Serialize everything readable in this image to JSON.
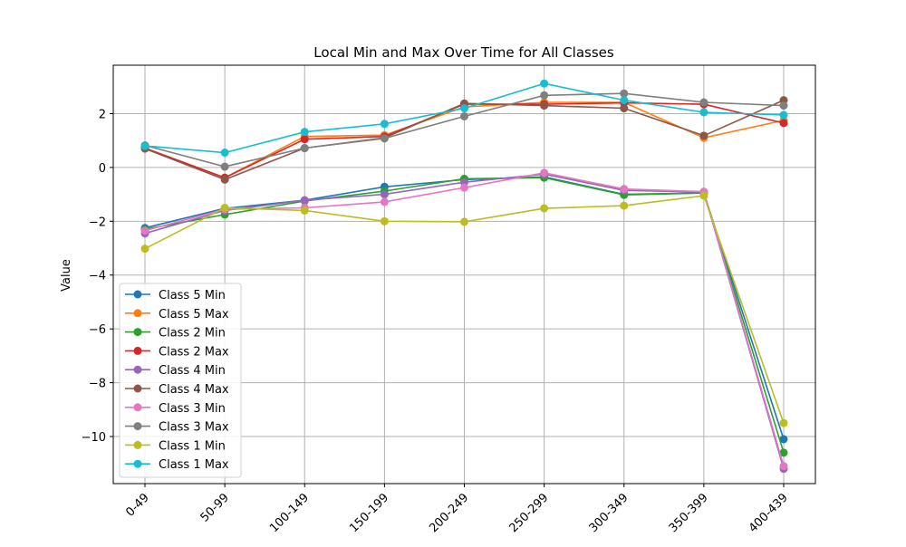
{
  "chart_data": {
    "type": "line",
    "title": "Local Min and Max Over Time for All Classes",
    "xlabel": "",
    "ylabel": "Value",
    "categories": [
      "0-49",
      "50-99",
      "100-149",
      "150-199",
      "200-249",
      "250-299",
      "300-349",
      "350-399",
      "400-439"
    ],
    "yticks": [
      2,
      0,
      -2,
      -4,
      -6,
      -8,
      -10
    ],
    "ytick_labels": [
      "2",
      "0",
      "−2",
      "−4",
      "−6",
      "−8",
      "−10"
    ],
    "ylim": [
      -11.75,
      3.8
    ],
    "grid": true,
    "legend_position": "lower-left",
    "series": [
      {
        "name": "Class 5 Min",
        "color": "#1f77b4",
        "values": [
          -2.25,
          -1.52,
          -1.22,
          -0.72,
          -0.45,
          -0.35,
          -1.0,
          -0.95,
          -10.1
        ]
      },
      {
        "name": "Class 5 Max",
        "color": "#ff7f0e",
        "values": [
          0.72,
          -0.38,
          1.15,
          1.2,
          2.25,
          2.42,
          2.42,
          1.1,
          1.75
        ]
      },
      {
        "name": "Class 2 Min",
        "color": "#2ca02c",
        "values": [
          -2.3,
          -1.75,
          -1.25,
          -0.88,
          -0.42,
          -0.38,
          -1.02,
          -0.95,
          -10.6
        ]
      },
      {
        "name": "Class 2 Max",
        "color": "#d62728",
        "values": [
          0.72,
          -0.38,
          1.05,
          1.15,
          2.35,
          2.35,
          2.4,
          2.35,
          1.65
        ]
      },
      {
        "name": "Class 4 Min",
        "color": "#9467bd",
        "values": [
          -2.45,
          -1.6,
          -1.22,
          -1.0,
          -0.55,
          -0.25,
          -0.85,
          -0.92,
          -11.2
        ]
      },
      {
        "name": "Class 4 Max",
        "color": "#8c564b",
        "values": [
          0.7,
          -0.45,
          0.72,
          1.1,
          2.38,
          2.3,
          2.2,
          1.18,
          2.5
        ]
      },
      {
        "name": "Class 3 Min",
        "color": "#e377c2",
        "values": [
          -2.35,
          -1.55,
          -1.5,
          -1.28,
          -0.75,
          -0.2,
          -0.8,
          -0.9,
          -11.1
        ]
      },
      {
        "name": "Class 3 Max",
        "color": "#7f7f7f",
        "values": [
          0.82,
          0.03,
          0.72,
          1.08,
          1.9,
          2.68,
          2.75,
          2.42,
          2.3
        ]
      },
      {
        "name": "Class 1 Min",
        "color": "#bcbd22",
        "values": [
          -3.02,
          -1.5,
          -1.6,
          -2.0,
          -2.02,
          -1.52,
          -1.42,
          -1.05,
          -9.5
        ]
      },
      {
        "name": "Class 1 Max",
        "color": "#17becf",
        "values": [
          0.8,
          0.55,
          1.32,
          1.62,
          2.2,
          3.12,
          2.5,
          2.05,
          1.95
        ]
      }
    ]
  }
}
